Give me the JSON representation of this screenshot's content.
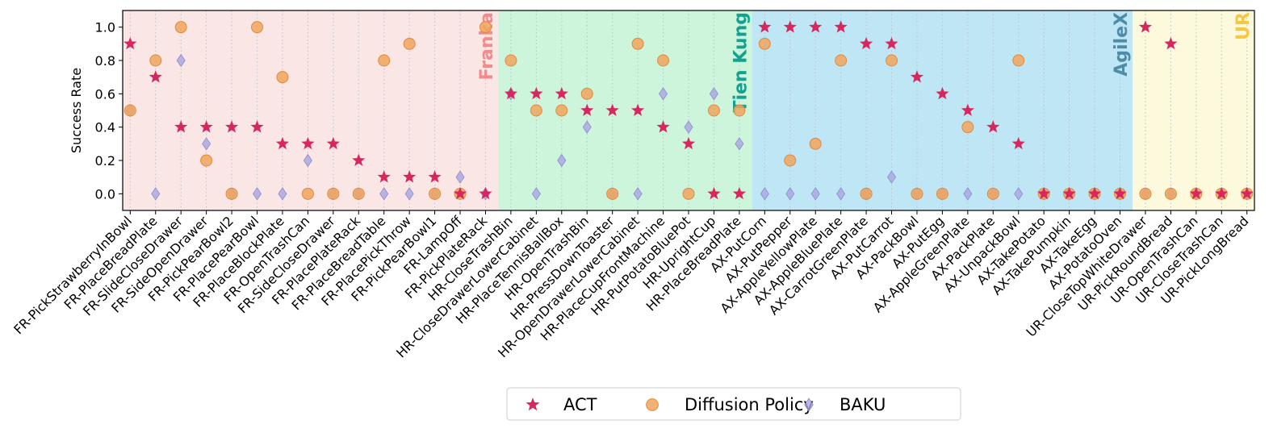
{
  "chart_data": {
    "type": "scatter",
    "ylabel": "Success Rate",
    "ylim": [
      -0.1,
      1.1
    ],
    "yticks": [
      0.0,
      0.2,
      0.4,
      0.6,
      0.8,
      1.0
    ],
    "ytick_labels": [
      "0.0",
      "0.2",
      "0.4",
      "0.6",
      "0.8",
      "1.0"
    ],
    "grid": "vertical dotted lines at each task",
    "legend_position": "bottom-center",
    "categories": [
      "FR-PickStrawberryInBowl",
      "FR-PlaceBreadPlate",
      "FR-SlideCloseDrawer",
      "FR-SideOpenDrawer",
      "FR-PickPearBowl2",
      "FR-PlacePearBowl",
      "FR-PlaceBlockPlate",
      "FR-OpenTrashCan",
      "FR-SideCloseDrawer",
      "FR-PlacePlateRack",
      "FR-PlaceBreadTable",
      "FR-PlacePickThrow",
      "FR-PickPearBowl1",
      "FR-LampOff",
      "FR-PickPlateRack",
      "HR-CloseTrashBin",
      "HR-CloseDrawerLowerCabinet",
      "HR-PlaceTennisBallBox",
      "HR-OpenTrashBin",
      "HR-PressDownToaster",
      "HR-OpenDrawerLowerCabinet",
      "HR-PlaceCupFrontMachine",
      "HR-PutPotatoBluePot",
      "HR-UprightCup",
      "HR-PlaceBreadPlate",
      "AX-PutCorn",
      "AX-PutPepper",
      "AX-AppleYellowPlate",
      "AX-AppleBluePlate",
      "AX-CarrotGreenPlate",
      "AX-PutCarrot",
      "AX-PackBowl",
      "AX-PutEgg",
      "AX-AppleGreenPlate",
      "AX-PackPlate",
      "AX-UnpackBowl",
      "AX-TakePotato",
      "AX-TakePumpkin",
      "AX-TakeEgg",
      "AX-PotatoOven",
      "UR-CloseTopWhiteDrawer",
      "UR-PickRoundBread",
      "UR-OpenTrashCan",
      "UR-CloseTrashCan",
      "UR-PickLongBread"
    ],
    "series": [
      {
        "name": "ACT",
        "marker": "star",
        "color": "#d6285f",
        "values": [
          0.9,
          0.7,
          0.4,
          0.4,
          0.4,
          0.4,
          0.3,
          0.3,
          0.3,
          0.2,
          0.1,
          0.1,
          0.1,
          0.0,
          0.0,
          0.6,
          0.6,
          0.6,
          0.5,
          0.5,
          0.5,
          0.4,
          0.3,
          0.0,
          0.0,
          1.0,
          1.0,
          1.0,
          1.0,
          0.9,
          0.9,
          0.7,
          0.6,
          0.5,
          0.4,
          0.3,
          0.0,
          0.0,
          0.0,
          0.0,
          1.0,
          0.9,
          0.0,
          0.0,
          0.0
        ]
      },
      {
        "name": "Diffusion Policy",
        "marker": "circle",
        "color": "#f0a45d",
        "values": [
          0.5,
          0.8,
          1.0,
          0.2,
          0.0,
          1.0,
          0.7,
          0.0,
          0.0,
          0.0,
          0.8,
          0.9,
          0.0,
          0.0,
          1.0,
          0.8,
          0.5,
          0.5,
          0.6,
          0.0,
          0.9,
          0.8,
          0.0,
          0.5,
          0.5,
          0.9,
          0.2,
          0.3,
          0.8,
          0.0,
          0.8,
          0.0,
          0.0,
          0.4,
          0.0,
          0.8,
          0.0,
          0.0,
          0.0,
          0.0,
          0.0,
          0.0,
          0.0,
          0.0,
          0.0
        ]
      },
      {
        "name": "BAKU",
        "marker": "diamond",
        "color": "#a9a6e0",
        "values": [
          0.5,
          0.0,
          0.8,
          0.3,
          0.0,
          0.0,
          0.0,
          0.2,
          0.0,
          0.0,
          0.0,
          0.0,
          0.0,
          0.1,
          0.0,
          0.6,
          0.0,
          0.2,
          0.4,
          0.0,
          0.0,
          0.6,
          0.4,
          0.6,
          0.3,
          0.0,
          0.0,
          0.0,
          0.0,
          0.0,
          0.1,
          0.0,
          0.0,
          0.0,
          0.0,
          0.0,
          0.0,
          0.0,
          0.0,
          0.0,
          0.0,
          0.0,
          0.0,
          0.0,
          0.0
        ]
      }
    ],
    "regions": [
      {
        "label": "Franka",
        "start": 0,
        "end": 14,
        "bg": "#fbe6e6",
        "label_color": "#f28b8b"
      },
      {
        "label": "Tien Kung",
        "start": 15,
        "end": 24,
        "bg": "#ccf5dc",
        "label_color": "#13a291"
      },
      {
        "label": "AgileX",
        "start": 25,
        "end": 39,
        "bg": "#bfe6f5",
        "label_color": "#4e8ca8"
      },
      {
        "label": "UR",
        "start": 40,
        "end": 44,
        "bg": "#fcf9dd",
        "label_color": "#f7c744"
      }
    ]
  }
}
